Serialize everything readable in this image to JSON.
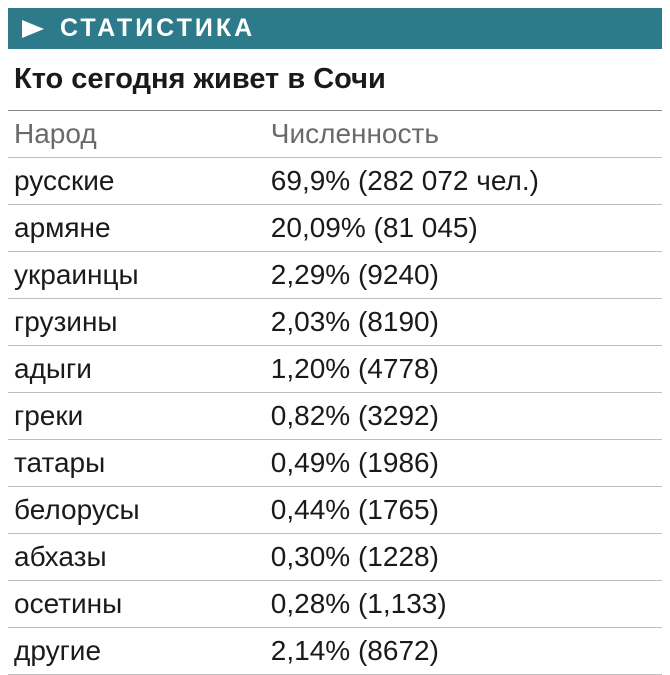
{
  "banner": {
    "label": "СТАТИСТИКА",
    "background_color": "#2d7a8a",
    "text_color": "#ffffff",
    "arrow_color": "#ffffff"
  },
  "title": "Кто сегодня живет в Сочи",
  "table": {
    "type": "table",
    "header": {
      "col1": "Народ",
      "col2": "Численность"
    },
    "rows": [
      {
        "col1": "русские",
        "col2": "69,9% (282 072 чел.)"
      },
      {
        "col1": "армяне",
        "col2": "20,09% (81 045)"
      },
      {
        "col1": "украинцы",
        "col2": "2,29% (9240)"
      },
      {
        "col1": "грузины",
        "col2": "2,03% (8190)"
      },
      {
        "col1": "адыги",
        "col2": "1,20% (4778)"
      },
      {
        "col1": "греки",
        "col2": "0,82% (3292)"
      },
      {
        "col1": "татары",
        "col2": "0,49% (1986)"
      },
      {
        "col1": "белорусы",
        "col2": "0,44% (1765)"
      },
      {
        "col1": "абхазы",
        "col2": "0,30% (1228)"
      },
      {
        "col1": "осетины",
        "col2": "0,28% (1,133)"
      },
      {
        "col1": "другие",
        "col2": "2,14% (8672)"
      }
    ],
    "header_text_color": "#6a6a6a",
    "body_text_color": "#1a1a1a",
    "row_border_color": "#bfbfbf",
    "font_size": 28
  }
}
